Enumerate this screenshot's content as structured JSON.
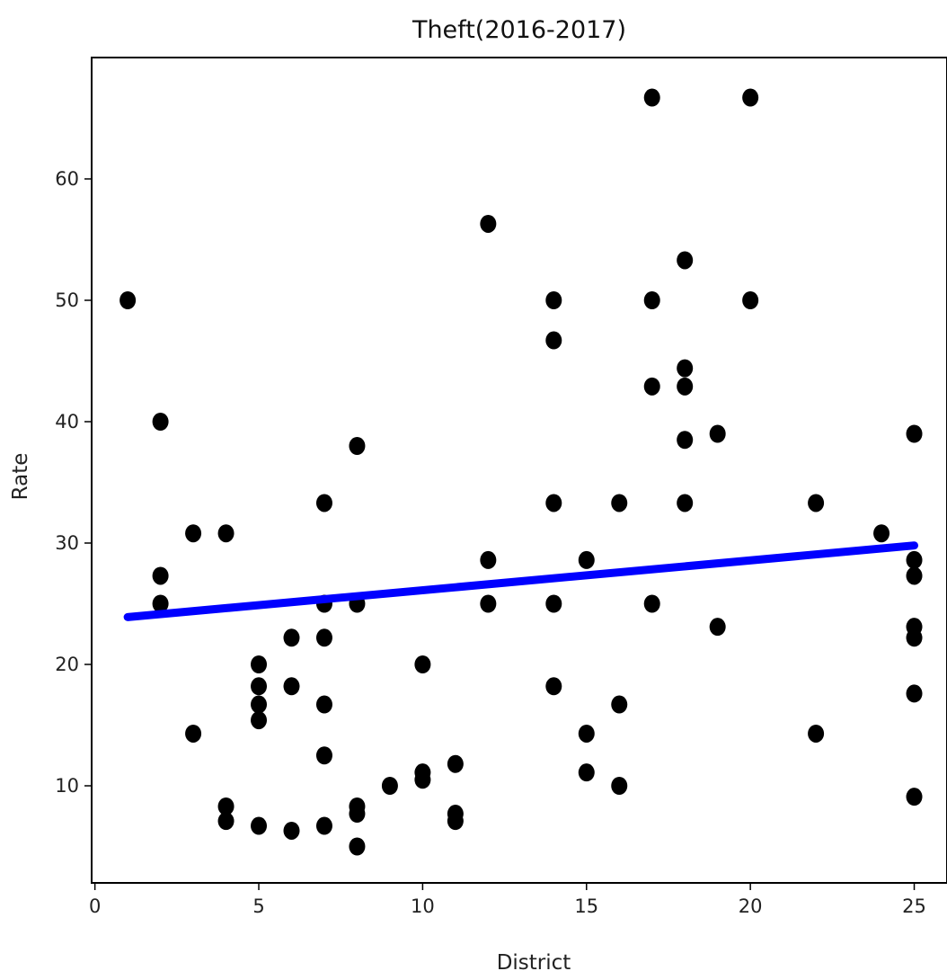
{
  "chart_data": {
    "type": "scatter",
    "title": "Theft(2016-2017)",
    "xlabel": "District",
    "ylabel": "Rate",
    "xlim": [
      -0.1,
      26.0
    ],
    "ylim": [
      2.0,
      70.0
    ],
    "xticks": [
      0,
      5,
      10,
      15,
      20,
      25
    ],
    "yticks": [
      10,
      20,
      30,
      40,
      50,
      60
    ],
    "grid": false,
    "colors": {
      "points": "#000000",
      "trend": "#0000ff"
    },
    "points": [
      {
        "x": 1,
        "y": 50.0
      },
      {
        "x": 2,
        "y": 40.0
      },
      {
        "x": 2,
        "y": 27.3
      },
      {
        "x": 2,
        "y": 25.0
      },
      {
        "x": 3,
        "y": 30.8
      },
      {
        "x": 3,
        "y": 14.3
      },
      {
        "x": 4,
        "y": 30.8
      },
      {
        "x": 4,
        "y": 8.3
      },
      {
        "x": 4,
        "y": 7.1
      },
      {
        "x": 5,
        "y": 20.0
      },
      {
        "x": 5,
        "y": 18.2
      },
      {
        "x": 5,
        "y": 16.7
      },
      {
        "x": 5,
        "y": 15.4
      },
      {
        "x": 5,
        "y": 6.7
      },
      {
        "x": 6,
        "y": 22.2
      },
      {
        "x": 6,
        "y": 18.2
      },
      {
        "x": 6,
        "y": 6.3
      },
      {
        "x": 7,
        "y": 33.3
      },
      {
        "x": 7,
        "y": 25.0
      },
      {
        "x": 7,
        "y": 22.2
      },
      {
        "x": 7,
        "y": 16.7
      },
      {
        "x": 7,
        "y": 12.5
      },
      {
        "x": 7,
        "y": 6.7
      },
      {
        "x": 8,
        "y": 38.0
      },
      {
        "x": 8,
        "y": 25.0
      },
      {
        "x": 8,
        "y": 8.3
      },
      {
        "x": 8,
        "y": 7.7
      },
      {
        "x": 8,
        "y": 5.0
      },
      {
        "x": 9,
        "y": 10.0
      },
      {
        "x": 10,
        "y": 20.0
      },
      {
        "x": 10,
        "y": 11.1
      },
      {
        "x": 10,
        "y": 10.5
      },
      {
        "x": 11,
        "y": 11.8
      },
      {
        "x": 11,
        "y": 7.7
      },
      {
        "x": 11,
        "y": 7.1
      },
      {
        "x": 12,
        "y": 56.3
      },
      {
        "x": 12,
        "y": 28.6
      },
      {
        "x": 12,
        "y": 25.0
      },
      {
        "x": 14,
        "y": 50.0
      },
      {
        "x": 14,
        "y": 46.7
      },
      {
        "x": 14,
        "y": 33.3
      },
      {
        "x": 14,
        "y": 25.0
      },
      {
        "x": 14,
        "y": 18.2
      },
      {
        "x": 15,
        "y": 28.6
      },
      {
        "x": 15,
        "y": 14.3
      },
      {
        "x": 15,
        "y": 11.1
      },
      {
        "x": 16,
        "y": 33.3
      },
      {
        "x": 16,
        "y": 16.7
      },
      {
        "x": 16,
        "y": 10.0
      },
      {
        "x": 17,
        "y": 66.7
      },
      {
        "x": 17,
        "y": 50.0
      },
      {
        "x": 17,
        "y": 42.9
      },
      {
        "x": 17,
        "y": 25.0
      },
      {
        "x": 18,
        "y": 53.3
      },
      {
        "x": 18,
        "y": 44.4
      },
      {
        "x": 18,
        "y": 42.9
      },
      {
        "x": 18,
        "y": 38.5
      },
      {
        "x": 18,
        "y": 33.3
      },
      {
        "x": 19,
        "y": 39.0
      },
      {
        "x": 19,
        "y": 23.1
      },
      {
        "x": 20,
        "y": 66.7
      },
      {
        "x": 20,
        "y": 50.0
      },
      {
        "x": 22,
        "y": 33.3
      },
      {
        "x": 22,
        "y": 14.3
      },
      {
        "x": 24,
        "y": 30.8
      },
      {
        "x": 25,
        "y": 39.0
      },
      {
        "x": 25,
        "y": 28.6
      },
      {
        "x": 25,
        "y": 27.3
      },
      {
        "x": 25,
        "y": 23.1
      },
      {
        "x": 25,
        "y": 22.2
      },
      {
        "x": 25,
        "y": 17.6
      },
      {
        "x": 25,
        "y": 9.1
      }
    ],
    "trend_line": {
      "x": [
        1,
        25
      ],
      "y": [
        23.9,
        29.8
      ]
    }
  }
}
